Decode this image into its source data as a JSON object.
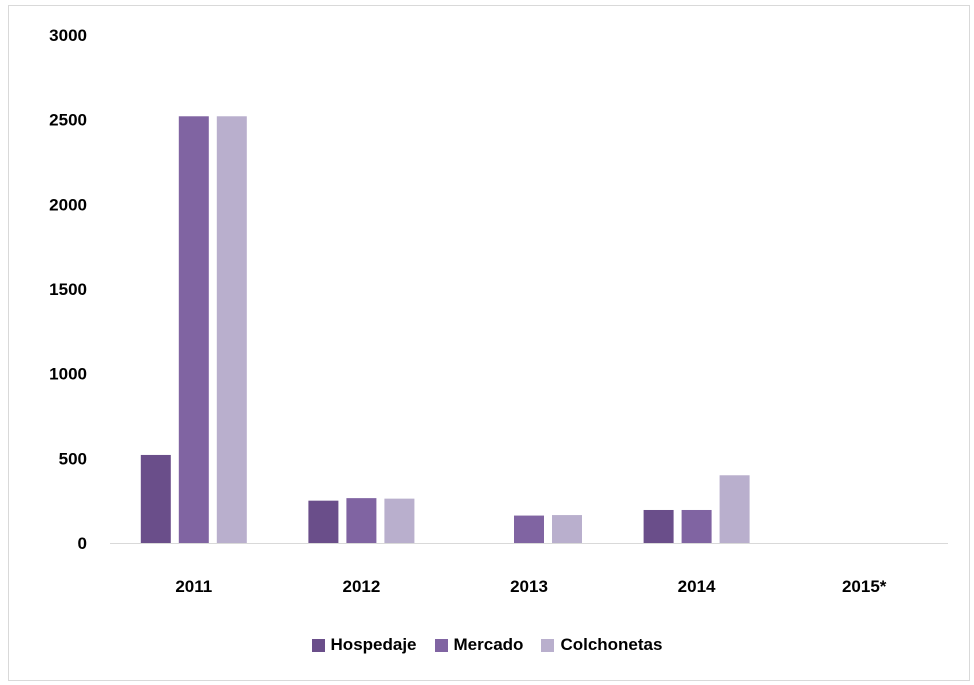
{
  "chart_data": {
    "type": "bar",
    "categories": [
      "2011",
      "2012",
      "2013",
      "2014",
      "2015*"
    ],
    "series": [
      {
        "name": "Hospedaje",
        "color": "#6a4e8a",
        "values": [
          520,
          250,
          0,
          195,
          0
        ]
      },
      {
        "name": "Mercado",
        "color": "#8064a2",
        "values": [
          2520,
          265,
          162,
          195,
          0
        ]
      },
      {
        "name": "Colchonetas",
        "color": "#b9afcd",
        "values": [
          2520,
          262,
          165,
          400,
          0
        ]
      }
    ],
    "title": "",
    "xlabel": "",
    "ylabel": "",
    "ylim": [
      0,
      3000
    ],
    "yticks": [
      "0",
      "500",
      "1000",
      "1500",
      "2000",
      "2500",
      "3000"
    ],
    "grid": false,
    "legend_position": "bottom"
  }
}
